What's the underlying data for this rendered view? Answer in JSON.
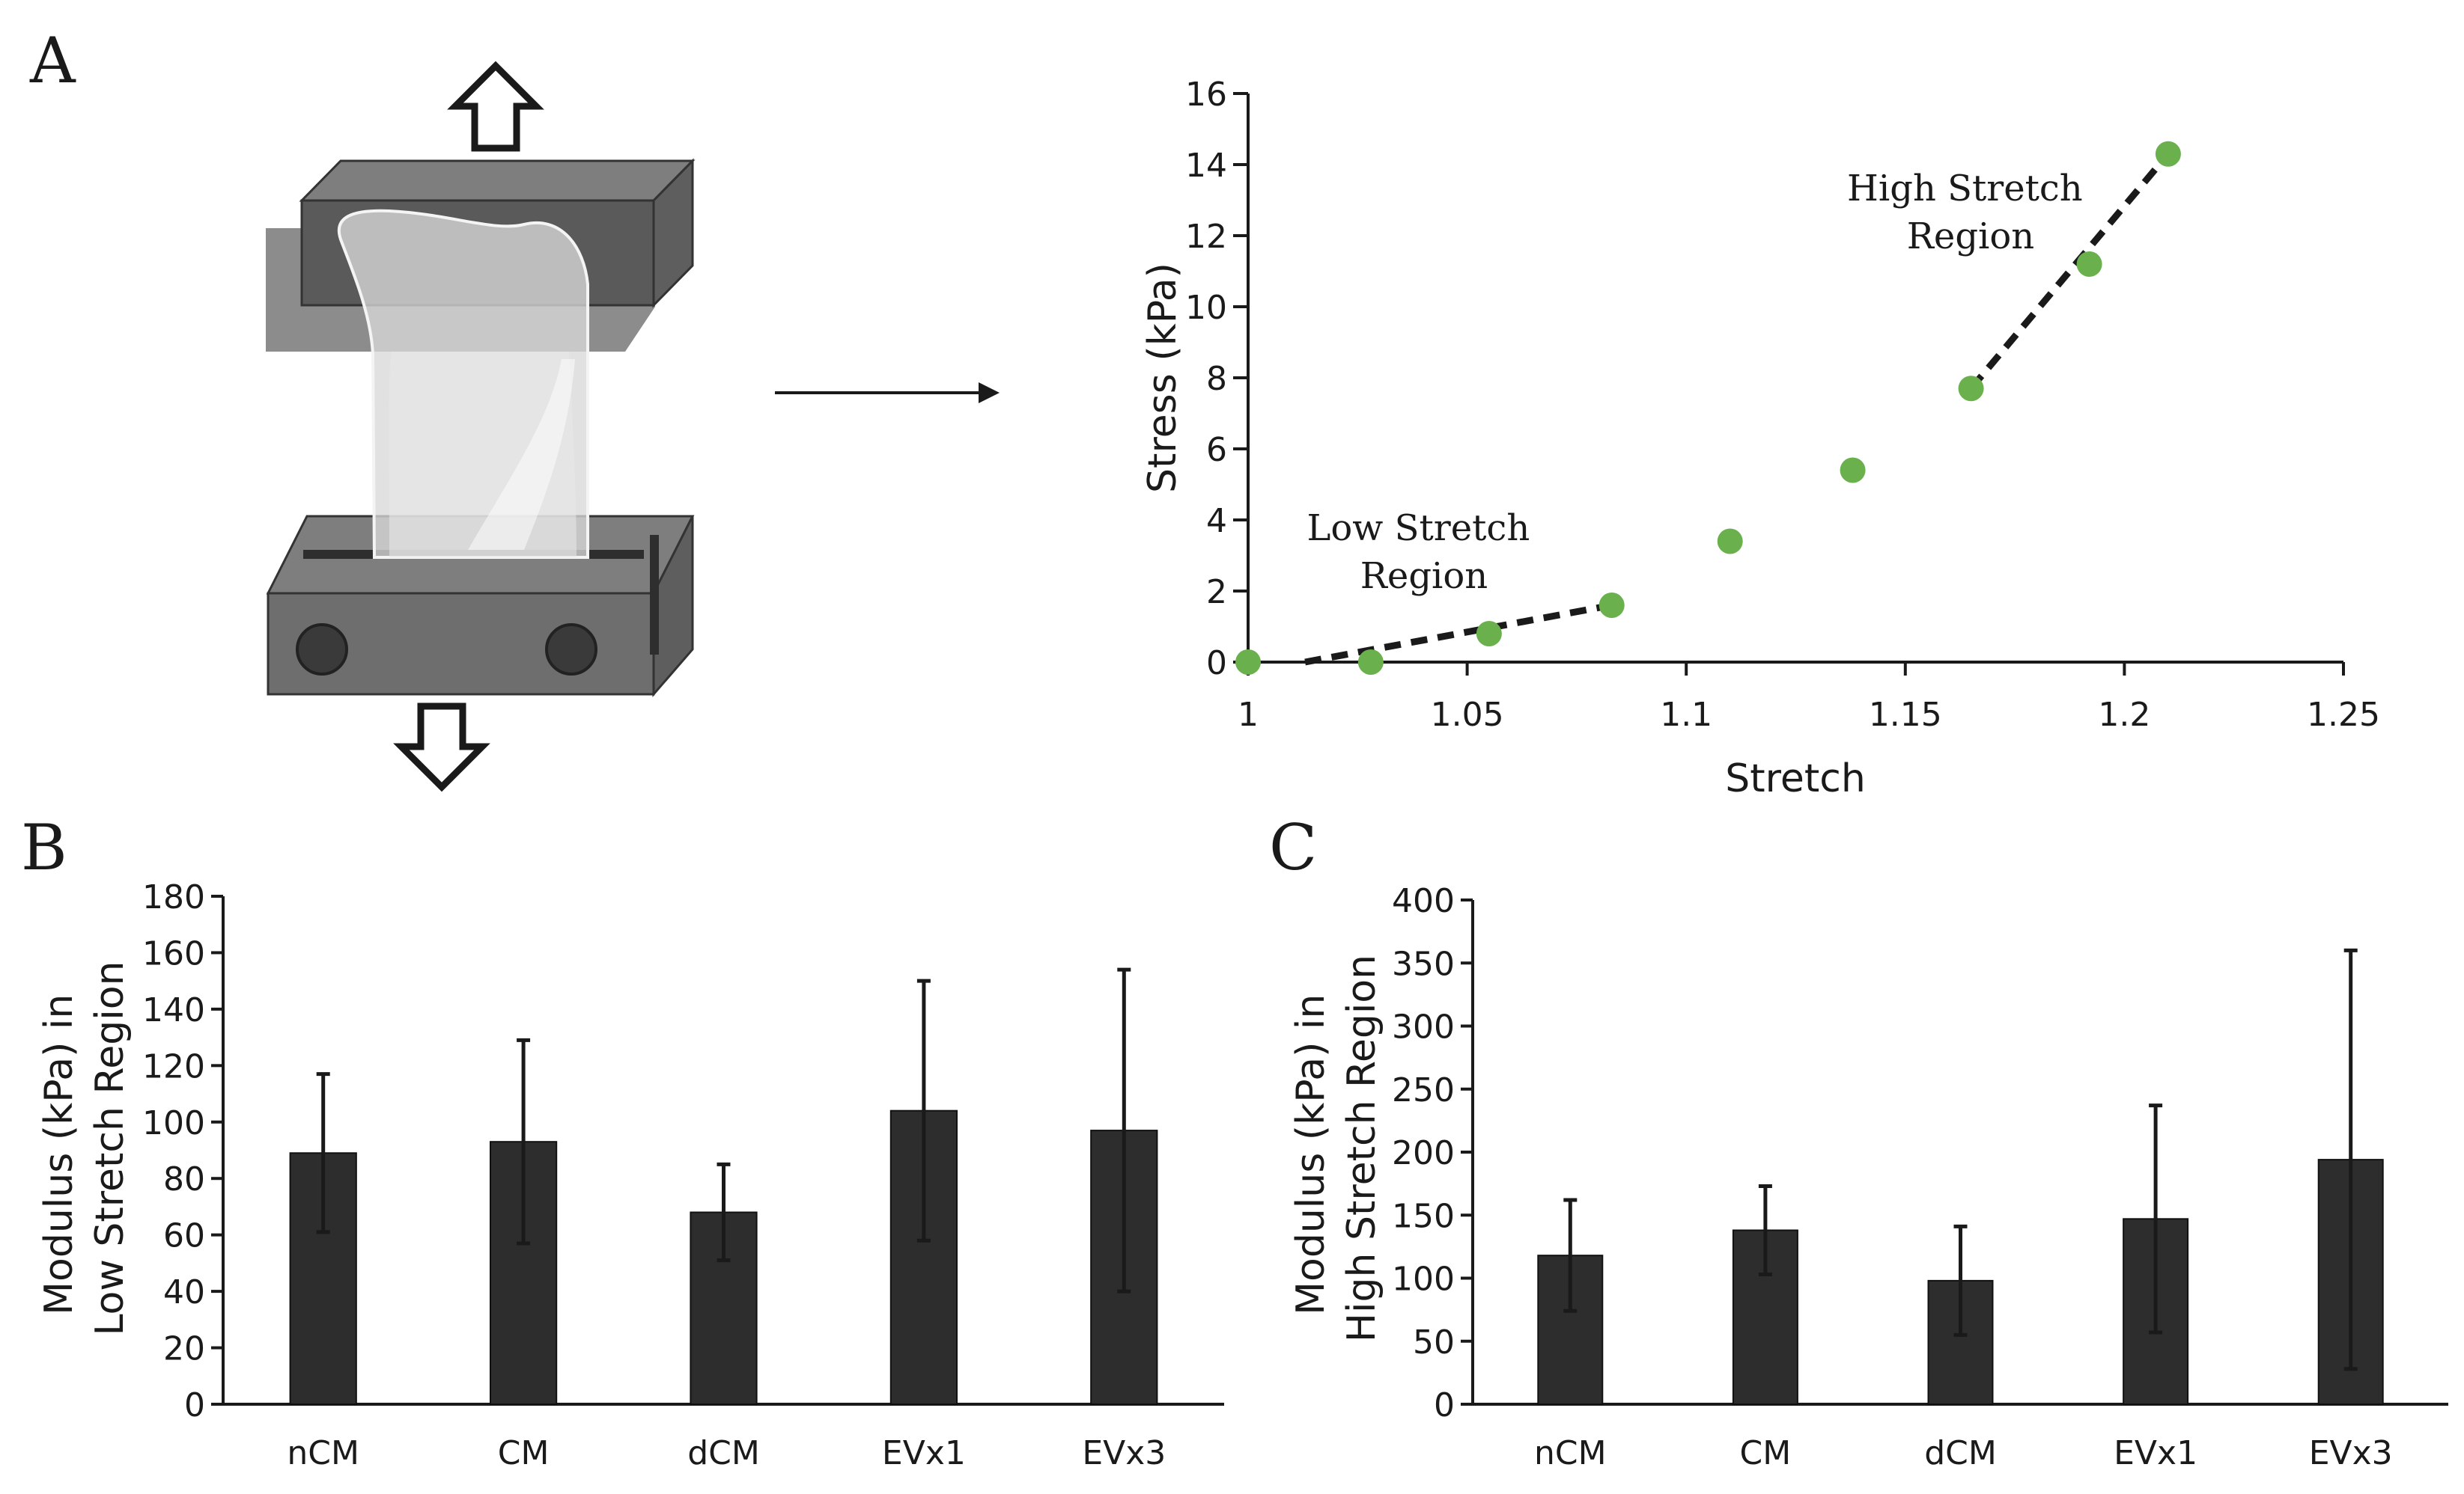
{
  "panels": {
    "a": {
      "letter": "A"
    },
    "b": {
      "letter": "B"
    },
    "c": {
      "letter": "C"
    }
  },
  "colors": {
    "point": "#6ab04c",
    "bar": "#2d2d2d",
    "axis": "#1a1a1a",
    "fit": "#1a1a1a"
  },
  "chart_data": [
    {
      "id": "stress-stretch",
      "type": "scatter",
      "title": "",
      "xlabel": "Stretch",
      "ylabel": "Stress (kPa)",
      "xlim": [
        1,
        1.25
      ],
      "ylim": [
        0,
        16
      ],
      "xticks": [
        "1",
        "1.05",
        "1.1",
        "1.15",
        "1.2",
        "1.25"
      ],
      "yticks": [
        "0",
        "2",
        "4",
        "6",
        "8",
        "10",
        "12",
        "14",
        "16"
      ],
      "points": {
        "x": [
          1.0,
          1.028,
          1.055,
          1.083,
          1.11,
          1.138,
          1.165,
          1.192,
          1.21
        ],
        "y": [
          0.0,
          0.0,
          0.8,
          1.6,
          3.4,
          5.4,
          7.7,
          11.2,
          14.3
        ]
      },
      "fits": [
        {
          "name": "low",
          "x": [
            1.013,
            1.083
          ],
          "y": [
            0.0,
            1.6
          ]
        },
        {
          "name": "high",
          "x": [
            1.165,
            1.21
          ],
          "y": [
            7.7,
            14.3
          ]
        }
      ],
      "annotations": [
        {
          "lines": [
            "Low Stretch",
            "Region"
          ]
        },
        {
          "lines": [
            "High Stretch",
            "Region"
          ]
        }
      ]
    },
    {
      "id": "low-modulus",
      "type": "bar",
      "categories": [
        "nCM",
        "CM",
        "dCM",
        "EVx1",
        "EVx3"
      ],
      "values": [
        89,
        93,
        68,
        104,
        97
      ],
      "errors": [
        28,
        36,
        17,
        46,
        57
      ],
      "ylabel_lines": [
        "Modulus (kPa) in",
        "Low Stretch Region"
      ],
      "ylim": [
        0,
        180
      ],
      "yticks": [
        "0",
        "20",
        "40",
        "60",
        "80",
        "100",
        "120",
        "140",
        "160",
        "180"
      ]
    },
    {
      "id": "high-modulus",
      "type": "bar",
      "categories": [
        "nCM",
        "CM",
        "dCM",
        "EVx1",
        "EVx3"
      ],
      "values": [
        118,
        138,
        98,
        147,
        194
      ],
      "errors": [
        44,
        35,
        43,
        90,
        166
      ],
      "ylabel_lines": [
        "Modulus (kPa) in",
        "High Stretch Region"
      ],
      "ylim": [
        0,
        400
      ],
      "yticks": [
        "0",
        "50",
        "100",
        "150",
        "200",
        "250",
        "300",
        "350",
        "400"
      ]
    }
  ]
}
